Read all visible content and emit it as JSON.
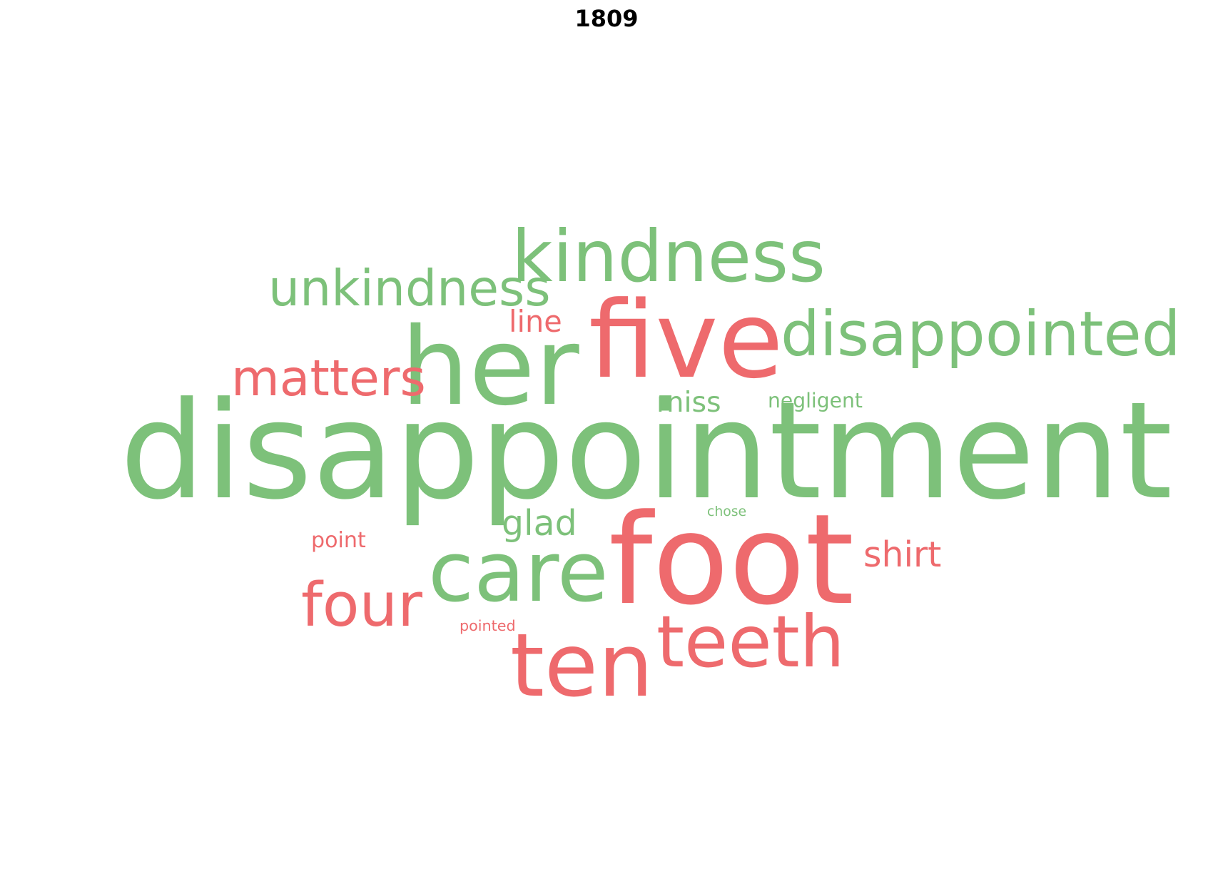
{
  "chart_data": {
    "type": "wordcloud",
    "title": "1809",
    "colors": {
      "positive": "#7dc17a",
      "negative": "#ee6a6d"
    },
    "words": [
      {
        "text": "disappointment",
        "weight": 1.0,
        "sentiment": "positive"
      },
      {
        "text": "foot",
        "weight": 0.93,
        "sentiment": "negative"
      },
      {
        "text": "her",
        "weight": 0.8,
        "sentiment": "positive"
      },
      {
        "text": "five",
        "weight": 0.79,
        "sentiment": "negative"
      },
      {
        "text": "ten",
        "weight": 0.65,
        "sentiment": "negative"
      },
      {
        "text": "care",
        "weight": 0.62,
        "sentiment": "positive"
      },
      {
        "text": "kindness",
        "weight": 0.53,
        "sentiment": "positive"
      },
      {
        "text": "teeth",
        "weight": 0.53,
        "sentiment": "negative"
      },
      {
        "text": "disappointed",
        "weight": 0.46,
        "sentiment": "positive"
      },
      {
        "text": "four",
        "weight": 0.45,
        "sentiment": "negative"
      },
      {
        "text": "unkindness",
        "weight": 0.37,
        "sentiment": "positive"
      },
      {
        "text": "matters",
        "weight": 0.37,
        "sentiment": "negative"
      },
      {
        "text": "shirt",
        "weight": 0.26,
        "sentiment": "negative"
      },
      {
        "text": "glad",
        "weight": 0.26,
        "sentiment": "positive"
      },
      {
        "text": "line",
        "weight": 0.22,
        "sentiment": "negative"
      },
      {
        "text": "miss",
        "weight": 0.21,
        "sentiment": "positive"
      },
      {
        "text": "point",
        "weight": 0.16,
        "sentiment": "negative"
      },
      {
        "text": "negligent",
        "weight": 0.15,
        "sentiment": "positive"
      },
      {
        "text": "pointed",
        "weight": 0.11,
        "sentiment": "negative"
      },
      {
        "text": "chose",
        "weight": 0.1,
        "sentiment": "positive"
      }
    ]
  }
}
